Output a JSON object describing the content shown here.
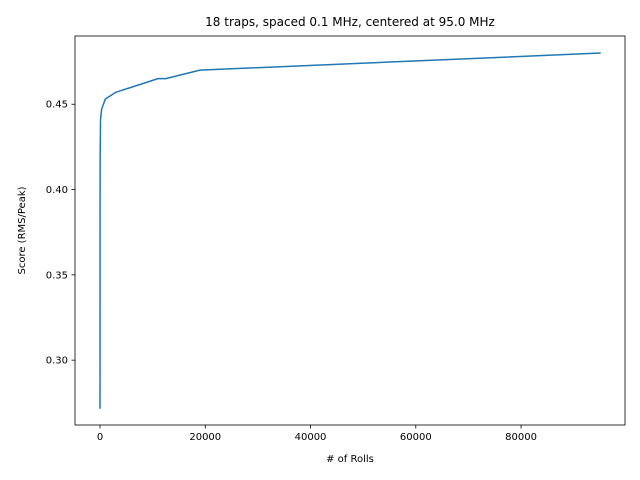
{
  "chart_data": {
    "type": "line",
    "title": "18 traps, spaced 0.1 MHz, centered at 95.0 MHz",
    "xlabel": "# of Rolls",
    "ylabel": "Score (RMS/Peak)",
    "xlim": [
      -4750,
      99750
    ],
    "ylim": [
      0.262,
      0.49
    ],
    "xticks": [
      0,
      20000,
      40000,
      60000,
      80000
    ],
    "yticks": [
      0.3,
      0.35,
      0.4,
      0.45
    ],
    "xtick_labels": [
      "0",
      "20000",
      "40000",
      "60000",
      "80000"
    ],
    "ytick_labels": [
      "0.30",
      "0.35",
      "0.40",
      "0.45"
    ],
    "grid": false,
    "series": [
      {
        "color": "#1f77b4",
        "x": [
          1,
          10,
          30,
          100,
          300,
          1000,
          3000,
          10000,
          11000,
          12500,
          19000,
          95000
        ],
        "y": [
          0.272,
          0.388,
          0.42,
          0.441,
          0.447,
          0.453,
          0.457,
          0.464,
          0.465,
          0.465,
          0.47,
          0.48
        ]
      }
    ]
  }
}
